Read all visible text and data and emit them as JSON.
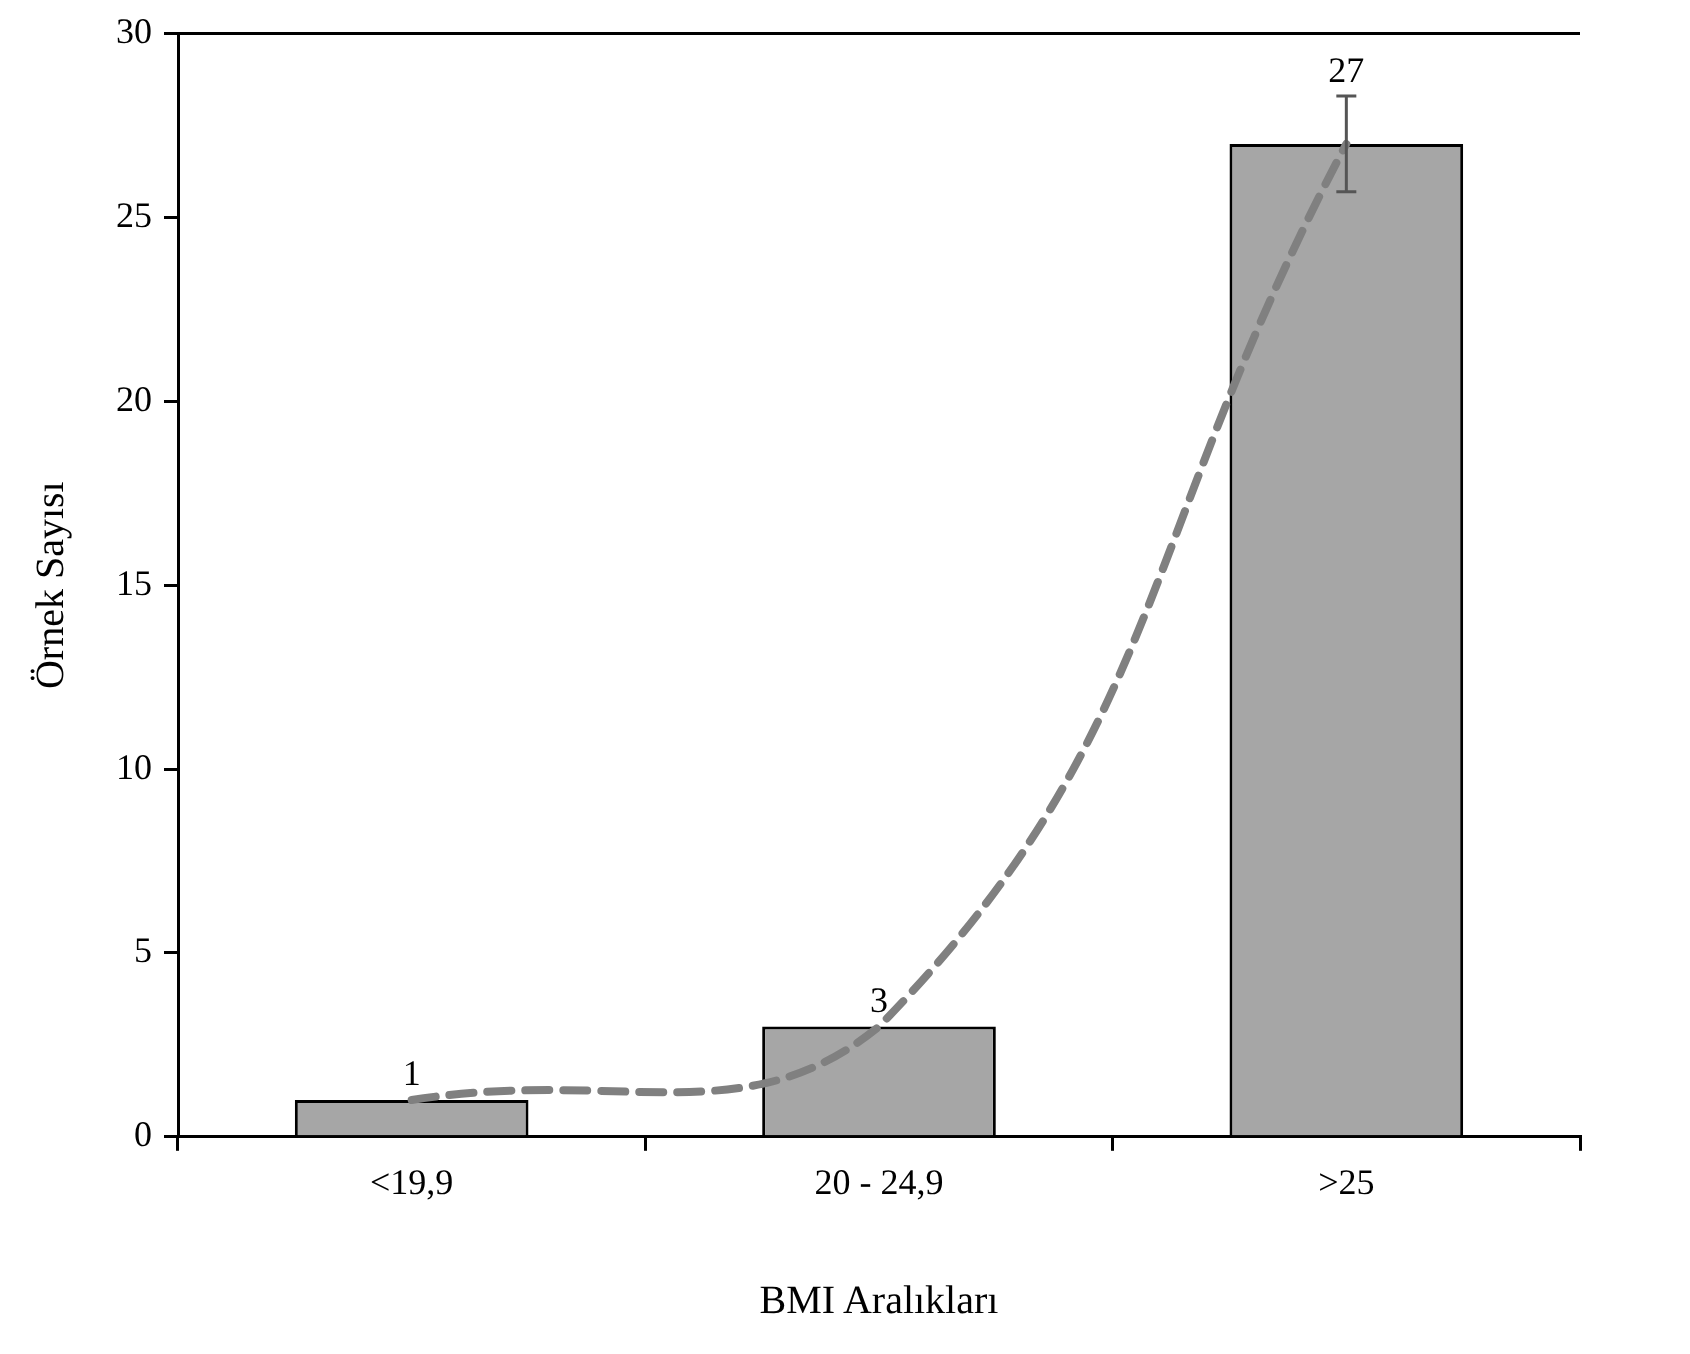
{
  "chart_data": {
    "type": "bar",
    "xlabel": "BMI Aralıkları",
    "ylabel": "Örnek Sayısı",
    "categories": [
      "<19,9",
      "20 - 24,9",
      ">25"
    ],
    "series": [
      {
        "color": "#a6a6a6",
        "values": [
          1,
          3,
          27
        ],
        "value_labels": [
          "1",
          "3",
          "27"
        ],
        "errors": [
          null,
          null,
          1.3
        ]
      },
      {
        "type": "line",
        "color": "#808080",
        "values": [
          1,
          3,
          27
        ],
        "line_style": "dashed",
        "marker": "none"
      }
    ],
    "ylim": [
      0,
      30
    ],
    "yticks": [
      0,
      5,
      10,
      15,
      20,
      25,
      30
    ]
  }
}
